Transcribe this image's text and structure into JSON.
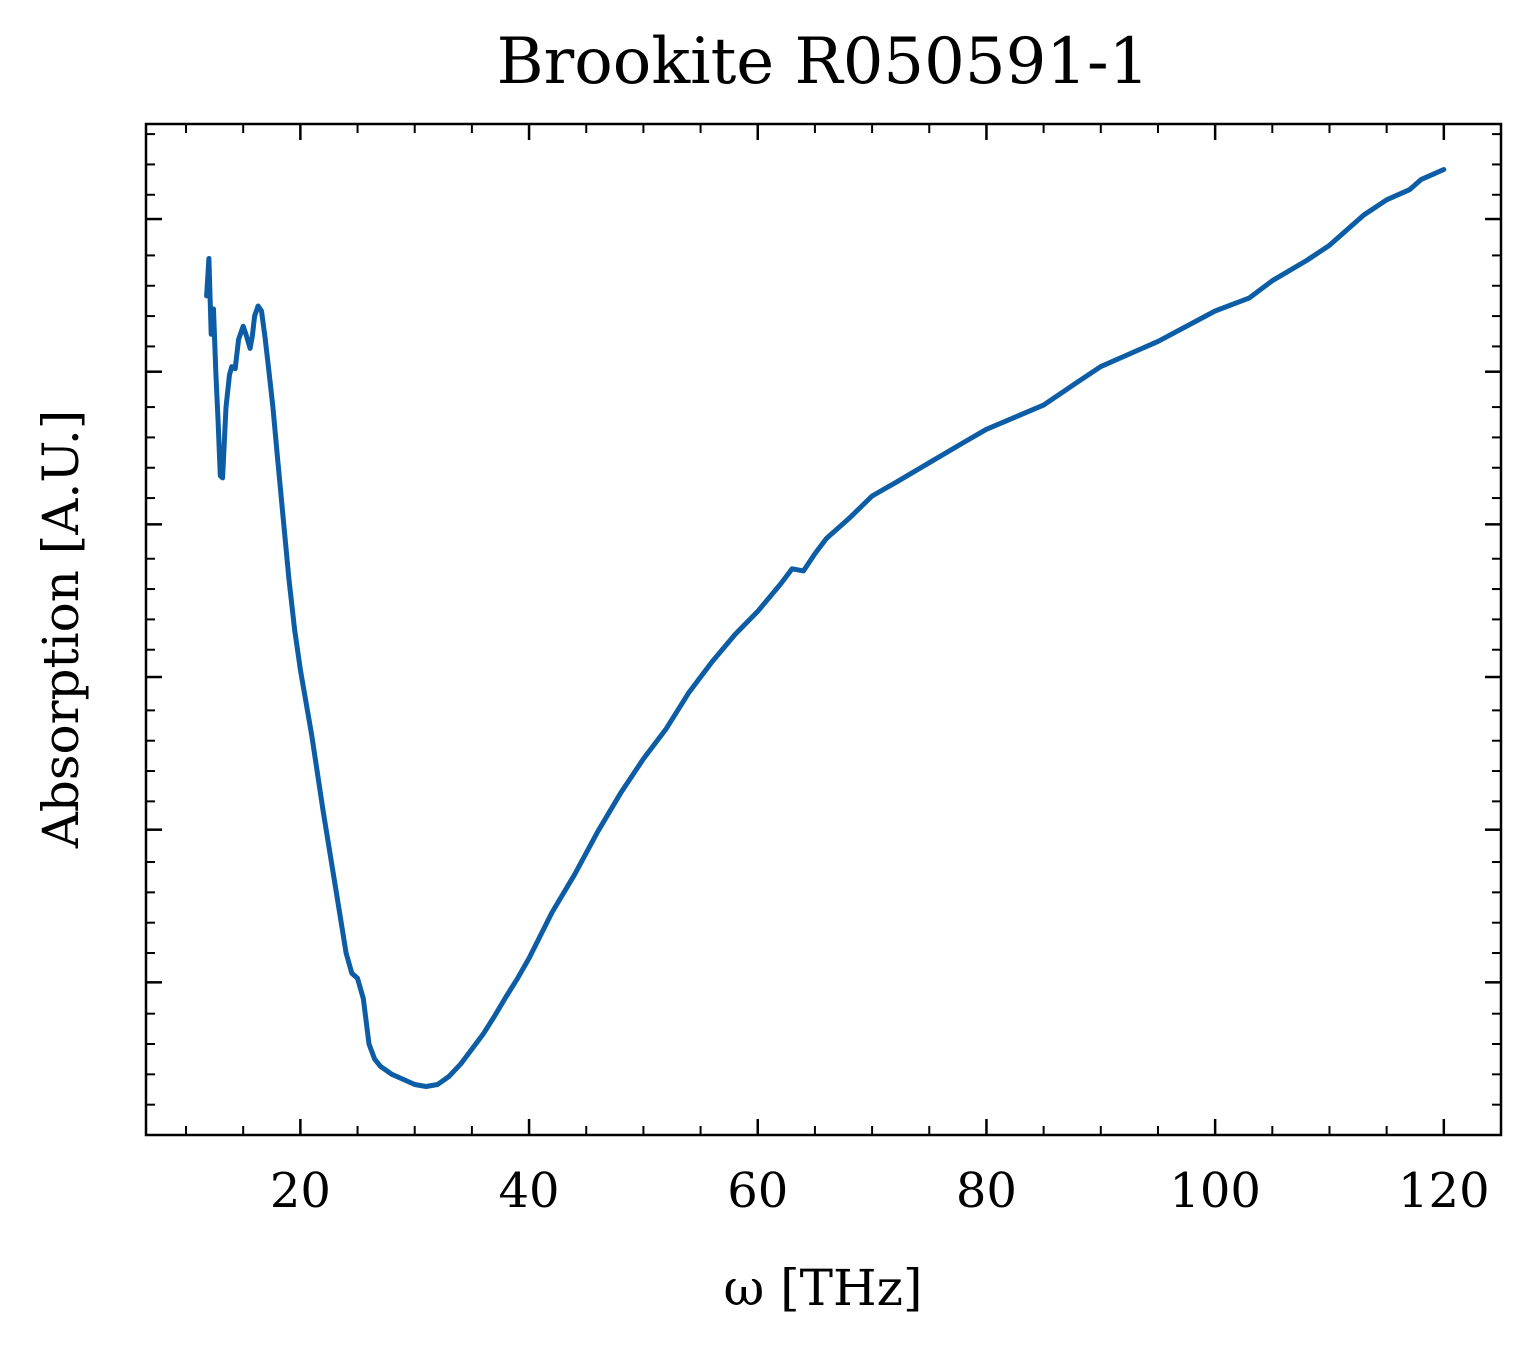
{
  "chart_data": {
    "type": "line",
    "title": "Brookite R050591-1",
    "xlabel": "ω [THz]",
    "ylabel": "Absorption [A.U.]",
    "xlim": [
      6.5,
      125
    ],
    "ylim": [
      0,
      1
    ],
    "x_ticks": [
      20,
      40,
      60,
      80,
      100,
      120
    ],
    "x_minor_step": 5,
    "y_ticks_labeled": false,
    "y_major_ticks": [
      0.151,
      0.302,
      0.453,
      0.604,
      0.755,
      0.906
    ],
    "y_minor_step": 0.03,
    "grid": false,
    "legend": "none",
    "series": [
      {
        "color": "#0C5DA5",
        "x": [
          11.8,
          12.0,
          12.2,
          12.4,
          12.6,
          12.8,
          13.0,
          13.2,
          13.5,
          13.8,
          14.0,
          14.3,
          14.6,
          15.0,
          15.3,
          15.6,
          15.8,
          16.0,
          16.3,
          16.6,
          16.9,
          17.2,
          17.6,
          18.0,
          18.5,
          19.0,
          19.5,
          20.0,
          21.0,
          22.0,
          23.0,
          24.0,
          24.5,
          25.0,
          25.5,
          26.0,
          26.5,
          27.0,
          28.0,
          29.0,
          30.0,
          31.0,
          32.0,
          33.0,
          34.0,
          35.0,
          36.0,
          37.0,
          38.0,
          39.0,
          40.0,
          42.0,
          44.0,
          46.0,
          48.0,
          50.0,
          52.0,
          54.0,
          56.0,
          58.0,
          60.0,
          62.0,
          63.0,
          64.0,
          65.0,
          66.0,
          68.0,
          70.0,
          72.0,
          75.0,
          78.0,
          80.0,
          85.0,
          88.0,
          90.0,
          95.0,
          100.0,
          103.0,
          105.0,
          108.0,
          110.0,
          113.0,
          115.0,
          117.0,
          118.0,
          119.0,
          120.0
        ],
        "y": [
          0.83,
          0.867,
          0.792,
          0.817,
          0.755,
          0.708,
          0.652,
          0.65,
          0.72,
          0.752,
          0.76,
          0.758,
          0.787,
          0.8,
          0.79,
          0.778,
          0.79,
          0.81,
          0.82,
          0.815,
          0.79,
          0.76,
          0.72,
          0.67,
          0.61,
          0.55,
          0.5,
          0.46,
          0.395,
          0.32,
          0.25,
          0.18,
          0.16,
          0.155,
          0.135,
          0.09,
          0.075,
          0.068,
          0.06,
          0.055,
          0.05,
          0.048,
          0.05,
          0.058,
          0.07,
          0.085,
          0.1,
          0.118,
          0.137,
          0.155,
          0.175,
          0.22,
          0.258,
          0.3,
          0.338,
          0.372,
          0.402,
          0.438,
          0.468,
          0.495,
          0.518,
          0.545,
          0.56,
          0.558,
          0.575,
          0.59,
          0.61,
          0.632,
          0.645,
          0.665,
          0.685,
          0.698,
          0.722,
          0.745,
          0.76,
          0.785,
          0.815,
          0.828,
          0.845,
          0.865,
          0.88,
          0.91,
          0.925,
          0.935,
          0.945,
          0.95,
          0.955
        ]
      }
    ]
  }
}
